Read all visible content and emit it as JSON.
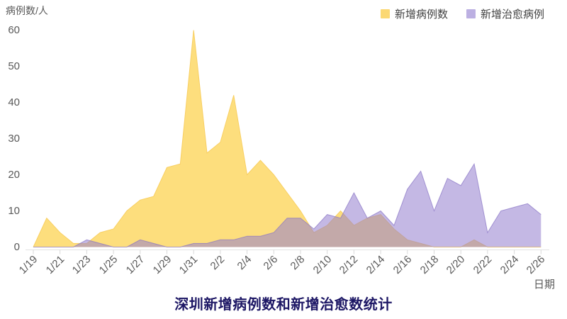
{
  "title": "深圳新增病例数和新增治愈数统计",
  "y_axis": {
    "label": "病例数/人",
    "ticks": [
      0,
      10,
      20,
      30,
      40,
      50,
      60
    ]
  },
  "x_axis": {
    "label": "日期"
  },
  "legend": [
    {
      "label": "新增病例数",
      "color": "#FBD873"
    },
    {
      "label": "新增治愈病例",
      "color": "#BCB0E2"
    }
  ],
  "colors": {
    "background": "#ffffff",
    "title_text": "#1D1765",
    "axis_text": "#595959",
    "baseline": "#e2e2e2",
    "tick_mark": "#d9d9d9",
    "cases_fill": "#FDDE7D",
    "cured_fill_overlay": "rgba(147,125,205,0.55)"
  },
  "chart_data": {
    "type": "area",
    "title": "深圳新增病例数和新增治愈数统计",
    "xlabel": "日期",
    "ylabel": "病例数/人",
    "ylim": [
      0,
      60
    ],
    "y_tick_step": 10,
    "x_tick_step": 2,
    "grid": false,
    "legend_position": "top-right",
    "x": [
      "1/19",
      "1/20",
      "1/21",
      "1/22",
      "1/23",
      "1/24",
      "1/25",
      "1/26",
      "1/27",
      "1/28",
      "1/29",
      "1/30",
      "1/31",
      "2/1",
      "2/2",
      "2/3",
      "2/4",
      "2/5",
      "2/6",
      "2/7",
      "2/8",
      "2/9",
      "2/10",
      "2/11",
      "2/12",
      "2/13",
      "2/14",
      "2/15",
      "2/16",
      "2/17",
      "2/18",
      "2/19",
      "2/20",
      "2/21",
      "2/22",
      "2/23",
      "2/24",
      "2/25",
      "2/26"
    ],
    "series": [
      {
        "name": "新增病例数",
        "fill": "#FDDE7D",
        "edge": "rgba(248,206,95,0.95)",
        "values": [
          0,
          8,
          4,
          1,
          1,
          4,
          5,
          10,
          13,
          14,
          22,
          23,
          60,
          26,
          29,
          42,
          20,
          24,
          20,
          15,
          10,
          4,
          6,
          10,
          6,
          8,
          9,
          5,
          2,
          1,
          0,
          0,
          0,
          2,
          0,
          0,
          0,
          0,
          0
        ]
      },
      {
        "name": "新增治愈病例",
        "fill": "rgba(147,125,205,0.55)",
        "edge": "rgba(136,116,196,0.7)",
        "values": [
          0,
          0,
          0,
          0,
          2,
          1,
          0,
          0,
          2,
          1,
          0,
          0,
          1,
          1,
          2,
          2,
          3,
          3,
          4,
          8,
          8,
          5,
          9,
          8,
          15,
          8,
          10,
          6,
          16,
          21,
          10,
          19,
          17,
          23,
          4,
          10,
          11,
          12,
          9
        ]
      }
    ]
  }
}
